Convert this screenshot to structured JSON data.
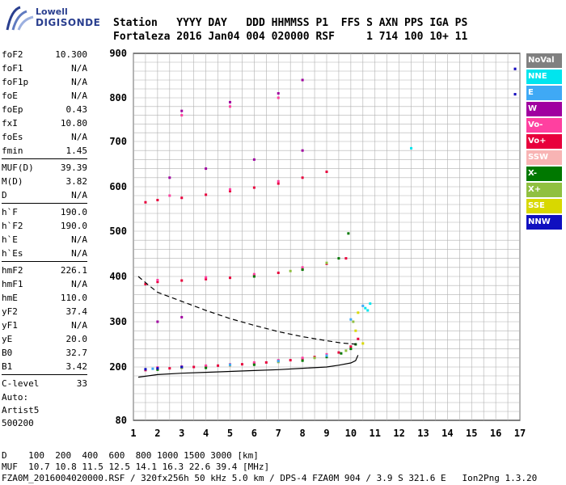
{
  "logo": {
    "line1": "Lowell",
    "line2": "DIGISONDE"
  },
  "header": {
    "line1": "Station   YYYY DAY   DDD HHMMSS P1  FFS S AXN PPS IGA PS",
    "line2": "Fortaleza 2016 Jan04 004 020000 RSF     1 714 100 10+ 11"
  },
  "params": {
    "group1": [
      {
        "name": "foF2",
        "value": "10.300"
      },
      {
        "name": "foF1",
        "value": "N/A"
      },
      {
        "name": "foF1p",
        "value": "N/A"
      },
      {
        "name": "foE",
        "value": "N/A"
      },
      {
        "name": "foEp",
        "value": "0.43"
      },
      {
        "name": "fxI",
        "value": "10.80"
      },
      {
        "name": "foEs",
        "value": "N/A"
      },
      {
        "name": "fmin",
        "value": "1.45"
      }
    ],
    "group2": [
      {
        "name": "MUF(D)",
        "value": "39.39"
      },
      {
        "name": "M(D)",
        "value": "3.82"
      },
      {
        "name": "D",
        "value": "N/A"
      }
    ],
    "group3": [
      {
        "name": "h`F",
        "value": "190.0"
      },
      {
        "name": "h`F2",
        "value": "190.0"
      },
      {
        "name": "h`E",
        "value": "N/A"
      },
      {
        "name": "h`Es",
        "value": "N/A"
      }
    ],
    "group4": [
      {
        "name": "hmF2",
        "value": "226.1"
      },
      {
        "name": "hmF1",
        "value": "N/A"
      },
      {
        "name": "hmE",
        "value": "110.0"
      },
      {
        "name": "yF2",
        "value": "37.4"
      },
      {
        "name": "yF1",
        "value": "N/A"
      },
      {
        "name": "yE",
        "value": "20.0"
      },
      {
        "name": "B0",
        "value": "32.7"
      },
      {
        "name": "B1",
        "value": "3.42"
      }
    ],
    "group5": [
      {
        "name": "C-level",
        "value": "33"
      }
    ]
  },
  "auto": {
    "line1": "Auto:",
    "line2": "Artist5",
    "line3": "500200"
  },
  "footer": {
    "line1": "D    100  200  400  600  800 1000 1500 3000 [km]",
    "line2": "MUF  10.7 10.8 11.5 12.5 14.1 16.3 22.6 39.4 [MHz]",
    "line3": "FZA0M_2016004020000.RSF / 320fx256h 50 kHz 5.0 km / DPS-4 FZA0M 904 / 3.9 S 321.6 E   Ion2Png 1.3.20"
  },
  "legend": [
    {
      "label": "NoVal",
      "color": "#808080"
    },
    {
      "label": "NNE",
      "color": "#00e5ee"
    },
    {
      "label": "E",
      "color": "#3fa9f5"
    },
    {
      "label": "W",
      "color": "#a000a0"
    },
    {
      "label": "Vo-",
      "color": "#ff40a0"
    },
    {
      "label": "Vo+",
      "color": "#e8003c"
    },
    {
      "label": "SSW",
      "color": "#f8b4b4"
    },
    {
      "label": "X-",
      "color": "#007800"
    },
    {
      "label": "X+",
      "color": "#90c040"
    },
    {
      "label": "SSE",
      "color": "#d8d800"
    },
    {
      "label": "NNW",
      "color": "#1010c0"
    }
  ],
  "chart_data": {
    "type": "scatter",
    "x_range": [
      1,
      17
    ],
    "y_range": [
      80,
      900
    ],
    "xticks": [
      "1",
      "2",
      "3",
      "4",
      "5",
      "6",
      "7",
      "8",
      "9",
      "10",
      "11",
      "12",
      "13",
      "14",
      "15",
      "16",
      "17"
    ],
    "yticks": [
      "80",
      "200",
      "300",
      "400",
      "500",
      "600",
      "700",
      "800",
      "900"
    ],
    "grid": true,
    "y_scale": "nonlinear (height in km)",
    "series": [
      {
        "name": "Vo+",
        "color": "#e8003c",
        "points": [
          [
            1.5,
            193
          ],
          [
            2,
            196
          ],
          [
            2.5,
            197
          ],
          [
            3,
            199
          ],
          [
            3.5,
            200
          ],
          [
            4,
            201
          ],
          [
            4.5,
            203
          ],
          [
            5,
            204
          ],
          [
            5.5,
            206
          ],
          [
            6,
            208
          ],
          [
            6.5,
            210
          ],
          [
            7,
            213
          ],
          [
            7.5,
            215
          ],
          [
            8,
            218
          ],
          [
            8.5,
            222
          ],
          [
            9,
            226
          ],
          [
            9.5,
            232
          ],
          [
            10,
            245
          ],
          [
            10.3,
            262
          ],
          [
            1.5,
            383
          ],
          [
            2,
            388
          ],
          [
            3,
            391
          ],
          [
            4,
            394
          ],
          [
            5,
            397
          ],
          [
            6,
            402
          ],
          [
            7,
            408
          ],
          [
            8,
            416
          ],
          [
            9,
            428
          ],
          [
            9.8,
            440
          ],
          [
            1.5,
            565
          ],
          [
            2,
            570
          ],
          [
            3,
            575
          ],
          [
            4,
            582
          ],
          [
            5,
            590
          ],
          [
            6,
            598
          ],
          [
            7,
            607
          ],
          [
            8,
            620
          ],
          [
            9,
            633
          ]
        ]
      },
      {
        "name": "Vo-",
        "color": "#ff40a0",
        "points": [
          [
            2,
            199
          ],
          [
            3,
            201
          ],
          [
            4,
            203
          ],
          [
            5,
            206
          ],
          [
            6,
            210
          ],
          [
            7,
            215
          ],
          [
            8,
            220
          ],
          [
            9,
            228
          ],
          [
            2,
            392
          ],
          [
            4,
            398
          ],
          [
            6,
            405
          ],
          [
            8,
            420
          ],
          [
            2.5,
            580
          ],
          [
            5,
            594
          ],
          [
            7,
            612
          ],
          [
            3,
            760
          ],
          [
            5,
            780
          ],
          [
            7,
            800
          ]
        ]
      },
      {
        "name": "X-",
        "color": "#007800",
        "points": [
          [
            2,
            194
          ],
          [
            4,
            198
          ],
          [
            6,
            205
          ],
          [
            8,
            214
          ],
          [
            9,
            222
          ],
          [
            9.6,
            230
          ],
          [
            10,
            240
          ],
          [
            10.2,
            250
          ],
          [
            6,
            400
          ],
          [
            8,
            415
          ],
          [
            9.5,
            440
          ],
          [
            9.9,
            495
          ]
        ]
      },
      {
        "name": "X+",
        "color": "#90c040",
        "points": [
          [
            3,
            198
          ],
          [
            5,
            204
          ],
          [
            7,
            211
          ],
          [
            8.5,
            220
          ],
          [
            9.8,
            236
          ],
          [
            10.1,
            300
          ],
          [
            7.5,
            412
          ],
          [
            9,
            430
          ]
        ]
      },
      {
        "name": "E",
        "color": "#3fa9f5",
        "points": [
          [
            1.8,
            196
          ],
          [
            3,
            200
          ],
          [
            5,
            205
          ],
          [
            7,
            213
          ],
          [
            9,
            225
          ],
          [
            10,
            305
          ],
          [
            10.5,
            335
          ]
        ]
      },
      {
        "name": "NNE",
        "color": "#00e5ee",
        "points": [
          [
            10.6,
            330
          ],
          [
            10.8,
            340
          ],
          [
            10.7,
            325
          ],
          [
            12.5,
            685
          ]
        ]
      },
      {
        "name": "W",
        "color": "#a000a0",
        "points": [
          [
            2,
            300
          ],
          [
            3,
            310
          ],
          [
            2.5,
            620
          ],
          [
            4,
            640
          ],
          [
            6,
            660
          ],
          [
            8,
            680
          ],
          [
            3,
            770
          ],
          [
            5,
            790
          ],
          [
            7,
            810
          ],
          [
            8,
            840
          ],
          [
            16.8,
            808
          ],
          [
            16.8,
            865
          ]
        ]
      },
      {
        "name": "SSE",
        "color": "#d8d800",
        "points": [
          [
            10.2,
            280
          ],
          [
            10.5,
            252
          ],
          [
            10.3,
            320
          ]
        ]
      },
      {
        "name": "NNW",
        "color": "#1010c0",
        "points": [
          [
            1.5,
            195
          ],
          [
            2,
            197
          ],
          [
            3,
            200
          ],
          [
            16.8,
            808
          ],
          [
            16.8,
            865
          ]
        ]
      }
    ],
    "lines": [
      {
        "name": "true height profile",
        "style": "solid",
        "points": [
          [
            1.2,
            177
          ],
          [
            2,
            183
          ],
          [
            3,
            186
          ],
          [
            4,
            188
          ],
          [
            5,
            190
          ],
          [
            6,
            192
          ],
          [
            7,
            194
          ],
          [
            8,
            197
          ],
          [
            9,
            200
          ],
          [
            9.5,
            204
          ],
          [
            10,
            209
          ],
          [
            10.2,
            214
          ],
          [
            10.3,
            226
          ]
        ]
      },
      {
        "name": "dashed profile",
        "style": "dashed",
        "points": [
          [
            1.2,
            400
          ],
          [
            1.6,
            382
          ],
          [
            2,
            365
          ],
          [
            3,
            345
          ],
          [
            4,
            325
          ],
          [
            5,
            307
          ],
          [
            6,
            292
          ],
          [
            7,
            278
          ],
          [
            8,
            267
          ],
          [
            9,
            258
          ],
          [
            9.6,
            253
          ],
          [
            10.3,
            250
          ]
        ]
      }
    ]
  }
}
